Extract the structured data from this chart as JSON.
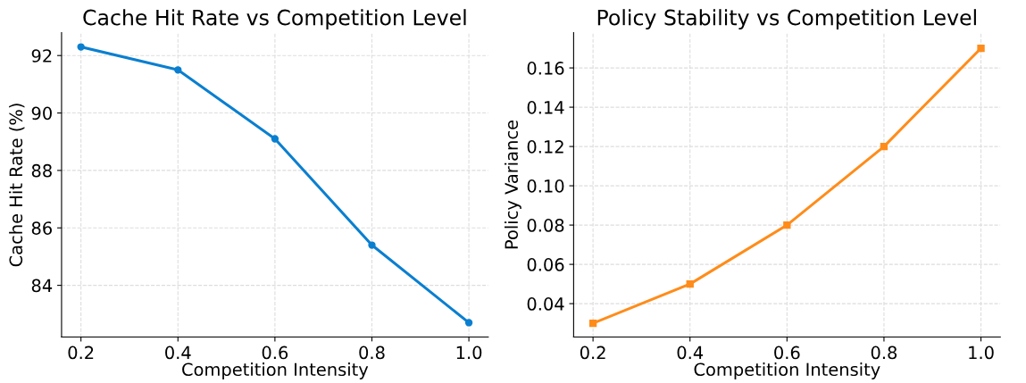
{
  "chart_data": [
    {
      "type": "line",
      "title": "Cache Hit Rate vs Competition Level",
      "xlabel": "Competition Intensity",
      "ylabel": "Cache Hit Rate (%)",
      "x": [
        0.2,
        0.4,
        0.6,
        0.8,
        1.0
      ],
      "series": [
        {
          "color": "#0a7fd0",
          "values": [
            92.3,
            91.5,
            89.1,
            85.4,
            82.7
          ]
        }
      ],
      "xlim": [
        0.16,
        1.04
      ],
      "ylim": [
        82.2,
        92.8
      ],
      "xticks": [
        {
          "value": 0.2,
          "label": "0.2"
        },
        {
          "value": 0.4,
          "label": "0.4"
        },
        {
          "value": 0.6,
          "label": "0.6"
        },
        {
          "value": 0.8,
          "label": "0.8"
        },
        {
          "value": 1.0,
          "label": "1.0"
        }
      ],
      "yticks": [
        84,
        86,
        88,
        90,
        92
      ],
      "grid": true,
      "marker": "circle",
      "line_style": "solid"
    },
    {
      "type": "line",
      "title": "Policy Stability vs Competition Level",
      "xlabel": "Competition Intensity",
      "ylabel": "Policy Variance",
      "x": [
        0.2,
        0.4,
        0.6,
        0.8,
        1.0
      ],
      "series": [
        {
          "color": "#ff8c1a",
          "values": [
            0.03,
            0.05,
            0.08,
            0.12,
            0.17
          ]
        }
      ],
      "xlim": [
        0.16,
        1.04
      ],
      "ylim": [
        0.023,
        0.178
      ],
      "xticks": [
        {
          "value": 0.2,
          "label": "0.2"
        },
        {
          "value": 0.4,
          "label": "0.4"
        },
        {
          "value": 0.6,
          "label": "0.6"
        },
        {
          "value": 0.8,
          "label": "0.8"
        },
        {
          "value": 1.0,
          "label": "1.0"
        }
      ],
      "yticks": [
        {
          "value": 0.04,
          "label": "0.04"
        },
        {
          "value": 0.06,
          "label": "0.06"
        },
        {
          "value": 0.08,
          "label": "0.08"
        },
        {
          "value": 0.1,
          "label": "0.10"
        },
        {
          "value": 0.12,
          "label": "0.12"
        },
        {
          "value": 0.14,
          "label": "0.14"
        },
        {
          "value": 0.16,
          "label": "0.16"
        }
      ],
      "grid": true,
      "marker": "square",
      "line_style": "solid"
    }
  ]
}
